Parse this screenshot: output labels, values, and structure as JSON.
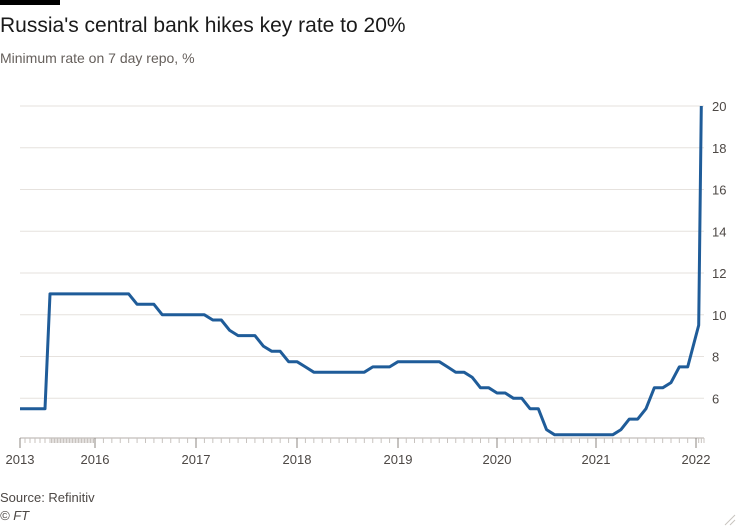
{
  "header": {
    "title": "Russia's central bank hikes key rate to 20%",
    "subtitle": "Minimum rate on 7 day repo, %"
  },
  "footer": {
    "source": "Source: Refinitiv",
    "credit": "© FT"
  },
  "colors": {
    "line": "#1f5c99",
    "grid": "#e6e2de",
    "text": "#4d4845"
  },
  "chart_data": {
    "type": "line",
    "title": "Russia's central bank hikes key rate to 20%",
    "subtitle": "Minimum rate on 7 day repo, %",
    "xlabel": "",
    "ylabel": "",
    "y_axis_side": "right",
    "ylim": [
      4,
      20
    ],
    "y_ticks": [
      6,
      8,
      10,
      12,
      14,
      16,
      18,
      20
    ],
    "x_ticks": [
      "2013",
      "2016",
      "2017",
      "2018",
      "2019",
      "2020",
      "2021",
      "2022"
    ],
    "grid": true,
    "legend": "none",
    "series": [
      {
        "points": [
          [
            "2013-01",
            5.5
          ],
          [
            "2013-06",
            5.5
          ],
          [
            "2013-07",
            11.0
          ],
          [
            "2016-05",
            11.0
          ],
          [
            "2016-06",
            10.5
          ],
          [
            "2016-08",
            10.5
          ],
          [
            "2016-09",
            10.0
          ],
          [
            "2017-02",
            10.0
          ],
          [
            "2017-03",
            9.75
          ],
          [
            "2017-04",
            9.75
          ],
          [
            "2017-05",
            9.25
          ],
          [
            "2017-06",
            9.0
          ],
          [
            "2017-08",
            9.0
          ],
          [
            "2017-09",
            8.5
          ],
          [
            "2017-10",
            8.25
          ],
          [
            "2017-11",
            8.25
          ],
          [
            "2017-12",
            7.75
          ],
          [
            "2018-01",
            7.75
          ],
          [
            "2018-02",
            7.5
          ],
          [
            "2018-03",
            7.25
          ],
          [
            "2018-09",
            7.25
          ],
          [
            "2018-10",
            7.5
          ],
          [
            "2018-12",
            7.5
          ],
          [
            "2019-01",
            7.75
          ],
          [
            "2019-06",
            7.75
          ],
          [
            "2019-07",
            7.5
          ],
          [
            "2019-08",
            7.25
          ],
          [
            "2019-09",
            7.25
          ],
          [
            "2019-10",
            7.0
          ],
          [
            "2019-11",
            6.5
          ],
          [
            "2019-12",
            6.5
          ],
          [
            "2020-01",
            6.25
          ],
          [
            "2020-02",
            6.25
          ],
          [
            "2020-03",
            6.0
          ],
          [
            "2020-04",
            6.0
          ],
          [
            "2020-05",
            5.5
          ],
          [
            "2020-06",
            5.5
          ],
          [
            "2020-07",
            4.5
          ],
          [
            "2020-08",
            4.25
          ],
          [
            "2021-03",
            4.25
          ],
          [
            "2021-04",
            4.5
          ],
          [
            "2021-05",
            5.0
          ],
          [
            "2021-06",
            5.0
          ],
          [
            "2021-07",
            5.5
          ],
          [
            "2021-08",
            6.5
          ],
          [
            "2021-09",
            6.5
          ],
          [
            "2021-10",
            6.75
          ],
          [
            "2021-11",
            7.5
          ],
          [
            "2021-12",
            7.5
          ],
          [
            "2022-02",
            9.5
          ],
          [
            "2022-03",
            20.0
          ]
        ]
      }
    ]
  }
}
